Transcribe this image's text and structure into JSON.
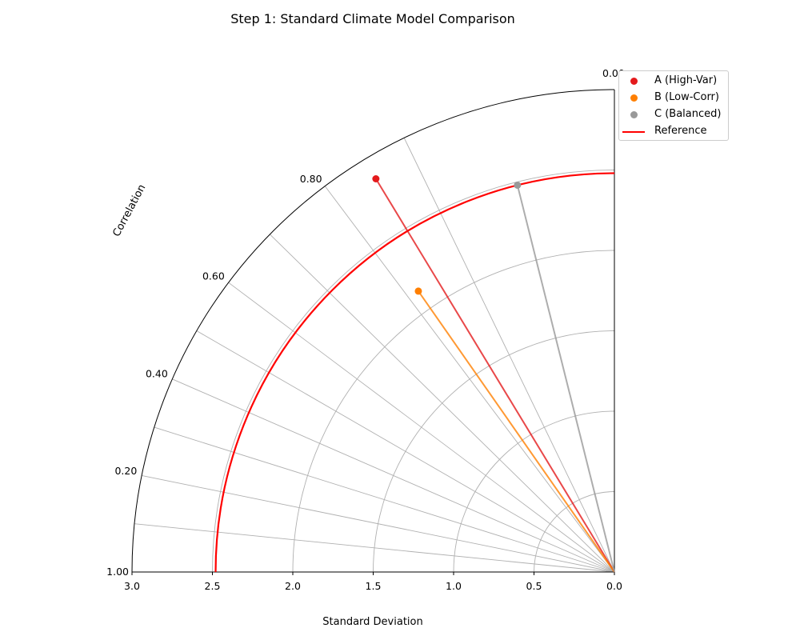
{
  "chart_data": {
    "type": "scatter",
    "subtype": "taylor-diagram",
    "title": "Step 1: Standard Climate Model Comparison",
    "xlabel": "Standard Deviation",
    "angular_label": "Correlation",
    "std_max": 3.0,
    "std_ticks": [
      "3.0",
      "2.5",
      "2.0",
      "1.5",
      "1.0",
      "0.5",
      "0.0"
    ],
    "std_tick_values": [
      3.0,
      2.5,
      2.0,
      1.5,
      1.0,
      0.5,
      0.0
    ],
    "std_grid_values": [
      0.5,
      1.0,
      1.5,
      2.0,
      2.5
    ],
    "corr_ticks": [
      "0.00",
      "0.20",
      "0.40",
      "0.60",
      "0.80",
      "1.00"
    ],
    "corr_tick_values": [
      0.0,
      0.2,
      0.4,
      0.6,
      0.8,
      1.0
    ],
    "corr_grid_values": [
      0.1,
      0.2,
      0.3,
      0.4,
      0.5,
      0.6,
      0.7,
      0.8,
      0.9
    ],
    "reference": {
      "name": "Reference",
      "std": 2.48,
      "color": "#ff0000"
    },
    "series": [
      {
        "name": "A (High-Var)",
        "std": 2.86,
        "corr": 0.855,
        "color": "#e41a1c"
      },
      {
        "name": "B (Low-Corr)",
        "std": 2.13,
        "corr": 0.82,
        "color": "#ff7f00"
      },
      {
        "name": "C (Balanced)",
        "std": 2.48,
        "corr": 0.97,
        "color": "#999999"
      }
    ],
    "legend_position": "top-right",
    "grid": true
  }
}
